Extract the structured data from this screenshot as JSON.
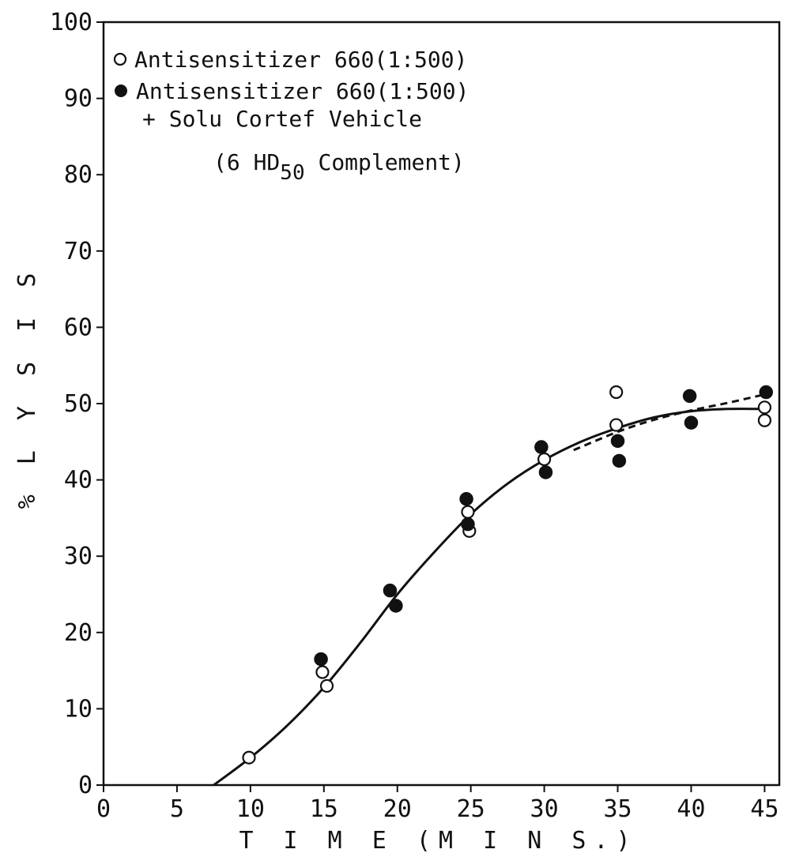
{
  "chart_data": {
    "type": "scatter",
    "xlabel": "T I M E (M I N S.)",
    "ylabel": "% L Y S I S",
    "xlim": [
      0,
      46
    ],
    "ylim": [
      0,
      100
    ],
    "x_ticks": [
      0,
      5,
      10,
      15,
      20,
      25,
      30,
      35,
      40,
      45
    ],
    "y_ticks": [
      0,
      10,
      20,
      30,
      40,
      50,
      60,
      70,
      80,
      90,
      100
    ],
    "grid": false,
    "legend_position": "top-left",
    "legend": {
      "open_label": "Antisensitizer 660(1:500)",
      "filled_label": "Antisensitizer 660(1:500)",
      "filled_label_line2": "+ Solu Cortef Vehicle",
      "note_prefix": "(6 HD",
      "note_subscript": "50",
      "note_suffix": " Complement)"
    },
    "series": [
      {
        "name": "Antisensitizer 660(1:500)",
        "marker": "open-circle",
        "points": [
          [
            9.9,
            3.6
          ],
          [
            14.9,
            14.8
          ],
          [
            15.2,
            13.0
          ],
          [
            24.8,
            35.8
          ],
          [
            24.9,
            33.3
          ],
          [
            30.0,
            42.7
          ],
          [
            34.9,
            51.5
          ],
          [
            34.9,
            47.2
          ],
          [
            45.0,
            49.5
          ],
          [
            45.0,
            47.8
          ]
        ]
      },
      {
        "name": "Antisensitizer 660(1:500) + Solu Cortef Vehicle",
        "marker": "filled-circle",
        "points": [
          [
            14.8,
            16.5
          ],
          [
            19.5,
            25.5
          ],
          [
            19.9,
            23.5
          ],
          [
            24.7,
            37.5
          ],
          [
            24.8,
            34.2
          ],
          [
            29.8,
            44.3
          ],
          [
            30.1,
            41.0
          ],
          [
            35.0,
            45.1
          ],
          [
            35.1,
            42.5
          ],
          [
            39.9,
            51.0
          ],
          [
            40.0,
            47.5
          ],
          [
            45.1,
            51.5
          ]
        ]
      }
    ],
    "curves": [
      {
        "style": "solid",
        "points": [
          [
            7.5,
            0
          ],
          [
            10,
            3.6
          ],
          [
            12.5,
            7.8
          ],
          [
            15,
            12.8
          ],
          [
            17.5,
            18.7
          ],
          [
            20,
            25.0
          ],
          [
            22.5,
            30.5
          ],
          [
            25,
            35.5
          ],
          [
            27.5,
            39.5
          ],
          [
            30,
            42.6
          ],
          [
            32.5,
            45.0
          ],
          [
            35,
            46.8
          ],
          [
            37.5,
            48.2
          ],
          [
            40,
            49.0
          ],
          [
            42.5,
            49.3
          ],
          [
            45,
            49.3
          ]
        ]
      },
      {
        "style": "dashed",
        "points": [
          [
            32,
            43.9
          ],
          [
            35,
            46.3
          ],
          [
            37.5,
            47.9
          ],
          [
            40,
            49.1
          ],
          [
            42.5,
            50.1
          ],
          [
            45,
            51.2
          ]
        ]
      }
    ]
  }
}
